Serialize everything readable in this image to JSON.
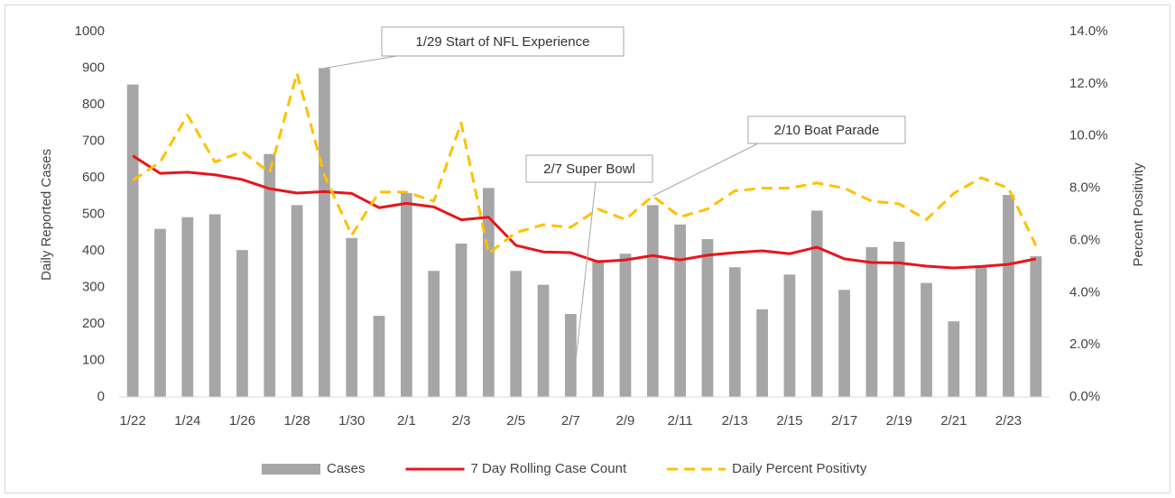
{
  "chart_data": {
    "type": "bar_line",
    "y_label": "Daily Reported Cases",
    "y2_label": "Percent Positivity",
    "categories": [
      "1/22",
      null,
      "1/24",
      null,
      "1/26",
      null,
      "1/28",
      null,
      "1/30",
      null,
      "2/1",
      null,
      "2/3",
      null,
      "2/5",
      null,
      "2/7",
      null,
      "2/9",
      null,
      "2/11",
      null,
      "2/13",
      null,
      "2/15",
      null,
      "2/17",
      null,
      "2/19",
      null,
      "2/21",
      null,
      "2/23",
      null
    ],
    "series": [
      {
        "name": "Cases",
        "kind": "bar",
        "color": "#a6a6a6",
        "values": [
          855,
          460,
          492,
          500,
          402,
          665,
          525,
          900,
          435,
          222,
          558,
          345,
          420,
          572,
          345,
          307,
          227,
          375,
          392,
          525,
          472,
          432,
          355,
          240,
          335,
          510,
          293,
          410,
          425,
          312,
          207,
          360,
          553,
          385
        ]
      },
      {
        "name": "7 Day Rolling Case Count",
        "kind": "line",
        "color": "#e8151b",
        "values": [
          660,
          612,
          615,
          608,
          595,
          570,
          558,
          562,
          557,
          518,
          530,
          520,
          485,
          492,
          415,
          397,
          395,
          370,
          375,
          387,
          375,
          388,
          395,
          400,
          392,
          410,
          378,
          368,
          367,
          358,
          353,
          357,
          363,
          378
        ]
      },
      {
        "name": "Daily Percent Positivty",
        "kind": "dashed",
        "axis": "y2",
        "color": "#ffc000",
        "values": [
          8.3,
          9.0,
          10.8,
          9.0,
          9.4,
          8.6,
          12.4,
          8.5,
          6.2,
          7.85,
          7.85,
          7.5,
          10.5,
          5.5,
          6.3,
          6.6,
          6.5,
          7.2,
          6.8,
          7.7,
          6.9,
          7.2,
          7.9,
          8.0,
          8.0,
          8.2,
          8.0,
          7.5,
          7.4,
          6.8,
          7.8,
          8.4,
          8.0,
          5.8
        ]
      }
    ],
    "ylim": [
      0,
      1000
    ],
    "yticks": [
      0,
      100,
      200,
      300,
      400,
      500,
      600,
      700,
      800,
      900,
      1000
    ],
    "y2lim": [
      0,
      14
    ],
    "y2ticks": [
      {
        "value": 0,
        "label": "0.0%"
      },
      {
        "value": 2,
        "label": "2.0%"
      },
      {
        "value": 4,
        "label": "4.0%"
      },
      {
        "value": 6,
        "label": "6.0%"
      },
      {
        "value": 8,
        "label": "8.0%"
      },
      {
        "value": 10,
        "label": "10.0%"
      },
      {
        "value": 12,
        "label": "12.0%"
      },
      {
        "value": 14,
        "label": "14.0%"
      }
    ],
    "annotations": [
      "1/29 Start of NFL Experience",
      "2/7 Super Bowl",
      "2/10 Boat Parade"
    ],
    "grid": false,
    "legend": "bottom"
  }
}
